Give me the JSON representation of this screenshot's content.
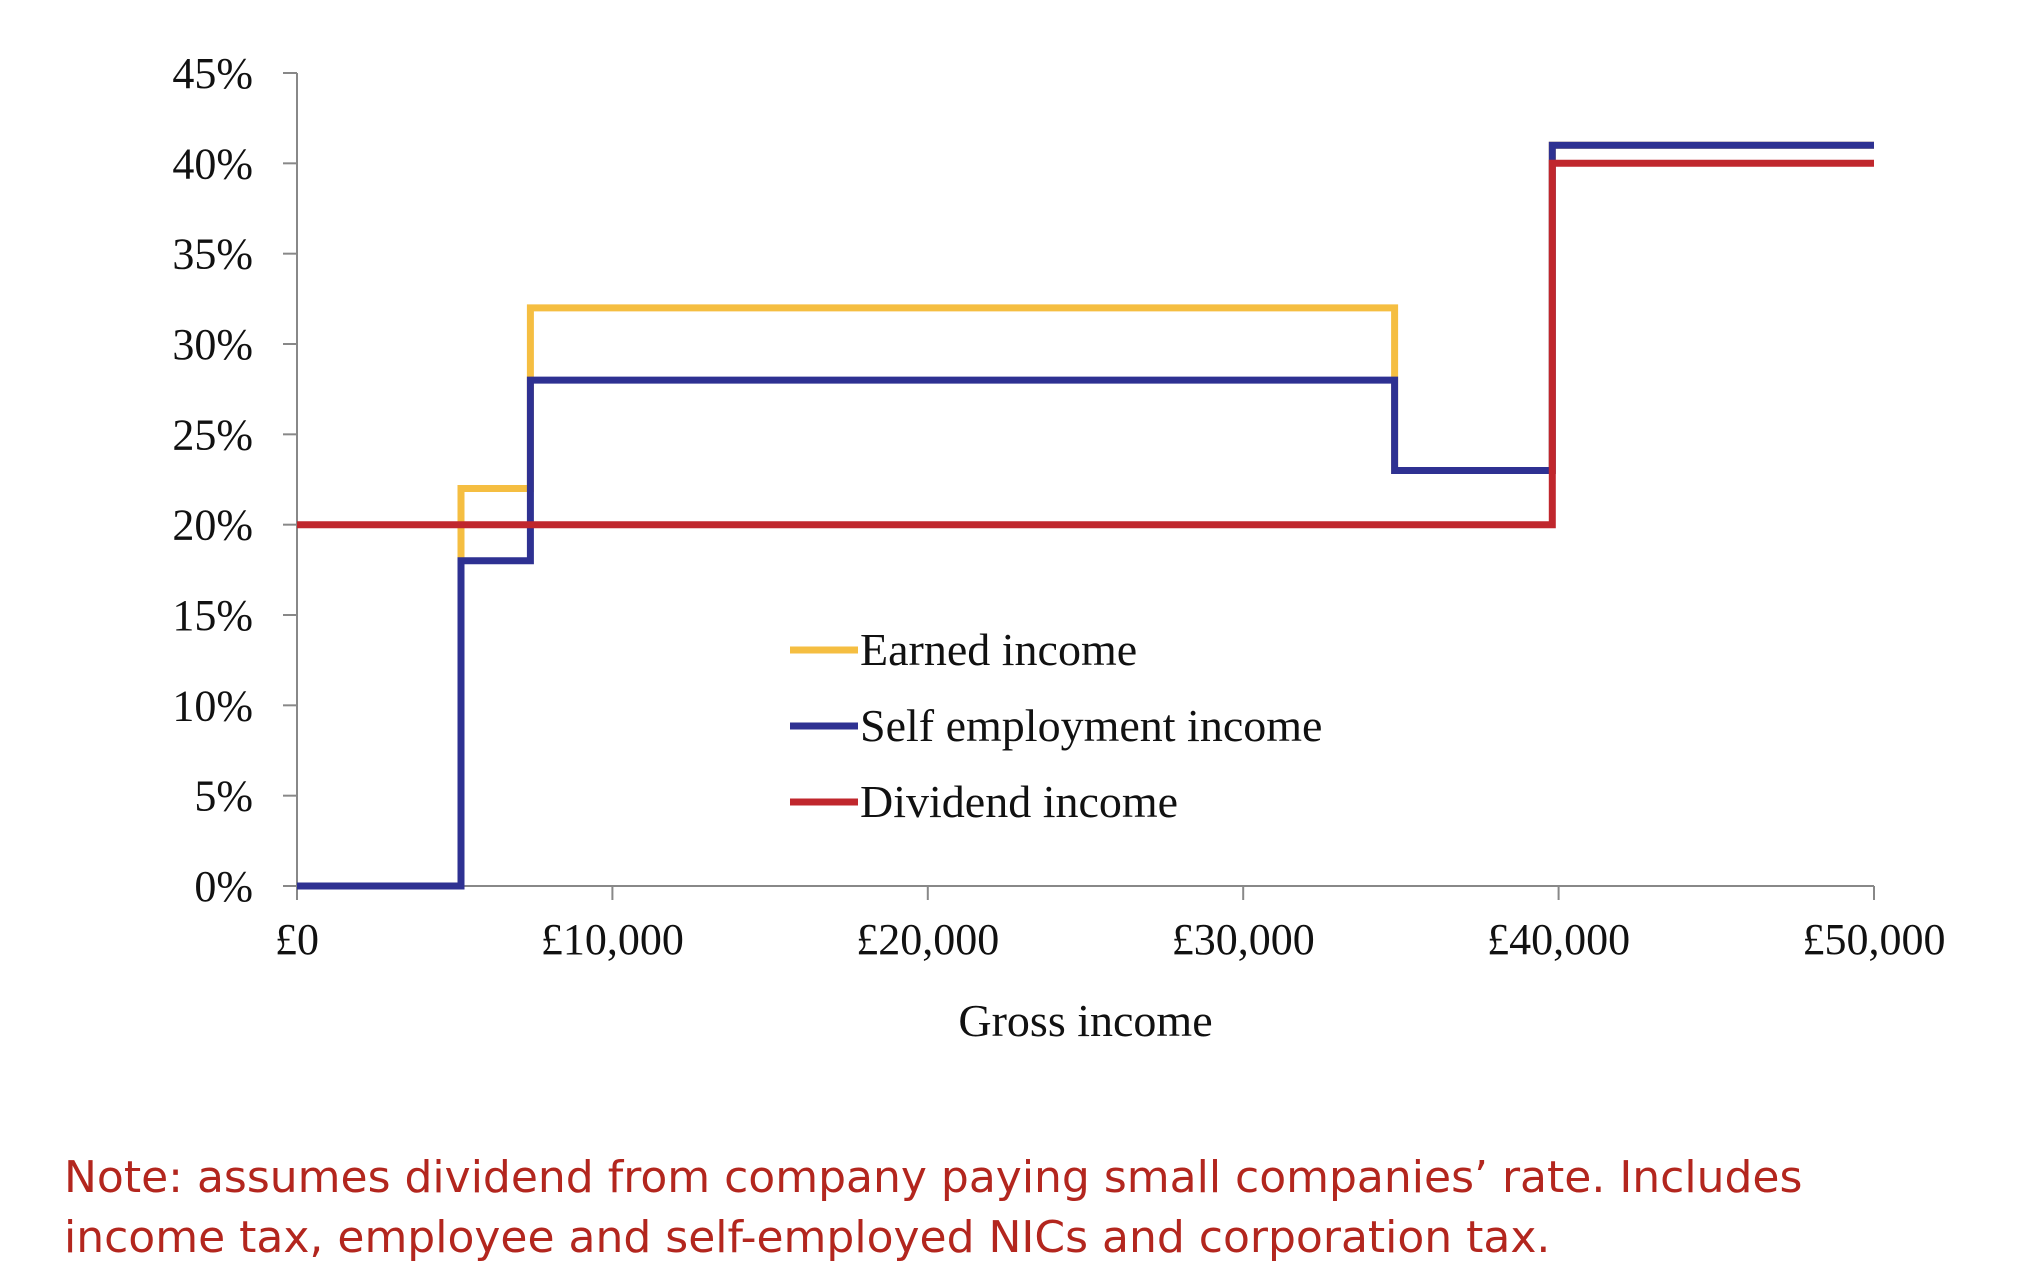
{
  "chart_data": {
    "type": "line",
    "step": true,
    "xlabel": "Gross income",
    "ylabel": "",
    "xlim": [
      0,
      50000
    ],
    "ylim": [
      0,
      45
    ],
    "x_ticks": [
      0,
      10000,
      20000,
      30000,
      40000,
      50000
    ],
    "x_tick_labels": [
      "£0",
      "£10,000",
      "£20,000",
      "£30,000",
      "£40,000",
      "£50,000"
    ],
    "y_ticks": [
      0,
      5,
      10,
      15,
      20,
      25,
      30,
      35,
      40,
      45
    ],
    "y_tick_labels": [
      "0%",
      "5%",
      "10%",
      "15%",
      "20%",
      "25%",
      "30%",
      "35%",
      "40%",
      "45%"
    ],
    "grid": false,
    "legend_position": "center",
    "series": [
      {
        "name": "Earned income",
        "color": "#f5be41",
        "x": [
          0,
          5200,
          5200,
          7400,
          7400,
          34800,
          34800,
          39800,
          39800,
          50000
        ],
        "y": [
          0,
          0,
          22,
          22,
          32,
          32,
          23,
          23,
          41,
          41
        ]
      },
      {
        "name": "Self employment income",
        "color": "#2e3192",
        "x": [
          0,
          5200,
          5200,
          7400,
          7400,
          34800,
          34800,
          39800,
          39800,
          50000
        ],
        "y": [
          0,
          0,
          18,
          18,
          28,
          28,
          23,
          23,
          41,
          41
        ]
      },
      {
        "name": "Dividend income",
        "color": "#c0272d",
        "x": [
          0,
          39800,
          39800,
          50000
        ],
        "y": [
          20,
          20,
          40,
          40
        ]
      }
    ]
  },
  "note": "Note: assumes dividend from company paying small companies’ rate. Includes income tax, employee and self-employed NICs and corporation tax."
}
